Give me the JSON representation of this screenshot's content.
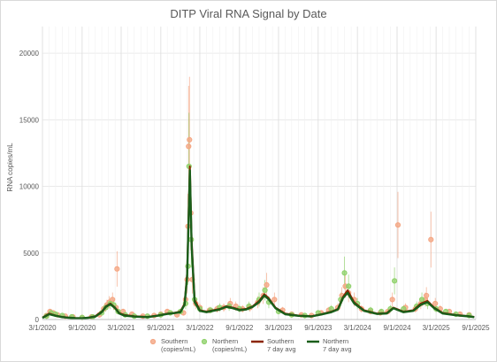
{
  "chart_data": {
    "type": "scatter",
    "title": "DITP Viral RNA Signal by Date",
    "xlabel": "",
    "ylabel": "RNA copies/mL",
    "ylim": [
      0,
      22000
    ],
    "xlim": [
      "2020-03-01",
      "2025-09-01"
    ],
    "yticks": [
      0,
      5000,
      10000,
      15000,
      20000
    ],
    "xticks": [
      "3/1/2020",
      "9/1/2020",
      "3/1/2021",
      "9/1/2021",
      "3/1/2022",
      "9/1/2022",
      "3/1/2023",
      "9/1/2023",
      "3/1/2024",
      "9/1/2024",
      "3/1/2025",
      "9/1/2025"
    ],
    "grid": true,
    "legend_position": "bottom",
    "colors": {
      "southern_points": "#f4a582",
      "northern_points": "#8fd16a",
      "southern_avg": "#8b2500",
      "northern_avg": "#1a5e1a"
    },
    "series": [
      {
        "name": "Southern (copies/mL)",
        "kind": "points",
        "x": [
          "2020-03-20",
          "2020-04-05",
          "2020-04-20",
          "2020-05-10",
          "2020-06-15",
          "2020-07-20",
          "2020-09-01",
          "2020-10-15",
          "2020-11-20",
          "2020-12-10",
          "2020-12-25",
          "2021-01-05",
          "2021-01-20",
          "2021-02-05",
          "2021-02-10",
          "2021-03-10",
          "2021-04-20",
          "2021-06-10",
          "2021-08-01",
          "2021-09-01",
          "2021-10-01",
          "2021-11-15",
          "2021-12-15",
          "2021-12-25",
          "2022-01-01",
          "2022-01-05",
          "2022-01-08",
          "2022-01-12",
          "2022-01-18",
          "2022-01-25",
          "2022-02-10",
          "2022-03-01",
          "2022-04-15",
          "2022-05-20",
          "2022-06-20",
          "2022-07-20",
          "2022-08-15",
          "2022-09-15",
          "2022-10-20",
          "2022-11-25",
          "2022-12-20",
          "2023-01-05",
          "2023-02-10",
          "2023-03-20",
          "2023-05-01",
          "2023-06-15",
          "2023-08-01",
          "2023-09-15",
          "2023-10-20",
          "2023-12-01",
          "2023-12-20",
          "2024-01-05",
          "2024-01-20",
          "2024-02-15",
          "2024-03-20",
          "2024-05-01",
          "2024-06-15",
          "2024-07-20",
          "2024-08-10",
          "2024-09-05",
          "2024-10-10",
          "2024-11-25",
          "2024-12-20",
          "2025-01-10",
          "2025-01-15",
          "2025-02-05",
          "2025-02-25",
          "2025-03-20",
          "2025-05-01",
          "2025-06-20",
          "2025-08-01"
        ],
        "y": [
          300,
          600,
          500,
          350,
          250,
          200,
          150,
          200,
          350,
          800,
          1100,
          1300,
          1500,
          900,
          3800,
          600,
          400,
          250,
          300,
          400,
          600,
          350,
          500,
          1500,
          3000,
          7000,
          13000,
          13500,
          8000,
          3000,
          1200,
          900,
          700,
          800,
          900,
          1200,
          1000,
          800,
          900,
          1300,
          1800,
          2600,
          1500,
          700,
          400,
          350,
          300,
          500,
          700,
          900,
          1800,
          2500,
          2000,
          1500,
          800,
          600,
          500,
          600,
          1500,
          7100,
          900,
          800,
          1200,
          1500,
          1800,
          6000,
          1200,
          800,
          600,
          400,
          350
        ]
      },
      {
        "name": "Northern (copies/mL)",
        "kind": "points",
        "x": [
          "2020-03-20",
          "2020-04-10",
          "2020-05-01",
          "2020-06-01",
          "2020-07-15",
          "2020-09-01",
          "2020-10-20",
          "2020-12-01",
          "2020-12-20",
          "2021-01-10",
          "2021-01-25",
          "2021-02-15",
          "2021-03-20",
          "2021-05-01",
          "2021-07-01",
          "2021-09-01",
          "2021-10-15",
          "2021-12-01",
          "2021-12-25",
          "2022-01-05",
          "2022-01-10",
          "2022-01-20",
          "2022-02-05",
          "2022-03-01",
          "2022-04-20",
          "2022-06-01",
          "2022-07-15",
          "2022-09-01",
          "2022-10-15",
          "2022-12-01",
          "2022-12-28",
          "2023-01-15",
          "2023-03-01",
          "2023-05-01",
          "2023-07-01",
          "2023-09-01",
          "2023-11-01",
          "2023-12-15",
          "2024-01-01",
          "2024-01-20",
          "2024-03-01",
          "2024-05-01",
          "2024-06-20",
          "2024-08-01",
          "2024-08-20",
          "2024-10-01",
          "2024-12-01",
          "2024-12-25",
          "2025-01-20",
          "2025-03-01",
          "2025-04-15",
          "2025-06-01",
          "2025-08-01"
        ],
        "y": [
          250,
          500,
          400,
          300,
          200,
          150,
          200,
          500,
          900,
          1200,
          1100,
          600,
          350,
          250,
          250,
          350,
          500,
          600,
          1200,
          4000,
          11500,
          6000,
          1500,
          800,
          700,
          900,
          1000,
          800,
          1000,
          1500,
          2200,
          1300,
          600,
          350,
          300,
          500,
          800,
          1500,
          3500,
          2500,
          1200,
          700,
          600,
          800,
          2900,
          800,
          1000,
          1500,
          1200,
          800,
          600,
          400,
          300
        ]
      },
      {
        "name": "Southern 7 day avg",
        "kind": "line",
        "x": [
          "2020-03-01",
          "2020-04-01",
          "2020-05-01",
          "2020-06-01",
          "2020-07-01",
          "2020-08-01",
          "2020-09-01",
          "2020-10-01",
          "2020-11-01",
          "2020-12-01",
          "2020-12-20",
          "2021-01-10",
          "2021-02-01",
          "2021-02-20",
          "2021-03-15",
          "2021-05-01",
          "2021-07-01",
          "2021-08-15",
          "2021-10-01",
          "2021-11-01",
          "2021-12-01",
          "2021-12-20",
          "2022-01-01",
          "2022-01-08",
          "2022-01-14",
          "2022-01-22",
          "2022-02-05",
          "2022-03-01",
          "2022-04-01",
          "2022-05-01",
          "2022-06-01",
          "2022-07-01",
          "2022-08-01",
          "2022-09-01",
          "2022-10-01",
          "2022-11-01",
          "2022-12-01",
          "2022-12-25",
          "2023-01-15",
          "2023-02-15",
          "2023-04-01",
          "2023-06-01",
          "2023-08-01",
          "2023-09-15",
          "2023-11-01",
          "2023-12-01",
          "2023-12-25",
          "2024-01-15",
          "2024-02-15",
          "2024-04-01",
          "2024-06-01",
          "2024-07-15",
          "2024-08-15",
          "2024-10-01",
          "2024-11-15",
          "2024-12-20",
          "2025-01-20",
          "2025-02-20",
          "2025-04-01",
          "2025-06-01",
          "2025-08-01",
          "2025-08-25"
        ],
        "y": [
          150,
          450,
          300,
          200,
          150,
          120,
          100,
          150,
          250,
          600,
          1000,
          1200,
          900,
          500,
          350,
          250,
          200,
          300,
          450,
          500,
          600,
          1200,
          3500,
          8000,
          11500,
          6000,
          1500,
          700,
          600,
          700,
          800,
          1000,
          900,
          750,
          800,
          1000,
          1400,
          1900,
          1600,
          900,
          450,
          300,
          250,
          400,
          600,
          800,
          1700,
          2200,
          1300,
          700,
          450,
          500,
          900,
          600,
          700,
          1200,
          1400,
          900,
          500,
          350,
          250,
          200
        ]
      },
      {
        "name": "Northern 7 day avg",
        "kind": "line",
        "x": [
          "2020-03-01",
          "2020-04-01",
          "2020-05-01",
          "2020-06-01",
          "2020-07-01",
          "2020-08-01",
          "2020-09-01",
          "2020-10-01",
          "2020-11-01",
          "2020-12-01",
          "2020-12-20",
          "2021-01-10",
          "2021-02-01",
          "2021-02-20",
          "2021-03-15",
          "2021-05-01",
          "2021-07-01",
          "2021-08-15",
          "2021-10-01",
          "2021-11-01",
          "2021-12-01",
          "2021-12-20",
          "2022-01-01",
          "2022-01-08",
          "2022-01-14",
          "2022-01-22",
          "2022-02-05",
          "2022-03-01",
          "2022-04-01",
          "2022-05-01",
          "2022-06-01",
          "2022-07-01",
          "2022-08-01",
          "2022-09-01",
          "2022-10-01",
          "2022-11-01",
          "2022-12-01",
          "2022-12-25",
          "2023-01-15",
          "2023-02-15",
          "2023-04-01",
          "2023-06-01",
          "2023-08-01",
          "2023-09-15",
          "2023-11-01",
          "2023-12-01",
          "2023-12-25",
          "2024-01-15",
          "2024-02-15",
          "2024-04-01",
          "2024-06-01",
          "2024-07-15",
          "2024-08-15",
          "2024-10-01",
          "2024-11-15",
          "2024-12-20",
          "2025-01-20",
          "2025-02-20",
          "2025-04-01",
          "2025-06-01",
          "2025-08-01",
          "2025-08-25"
        ],
        "y": [
          120,
          400,
          280,
          180,
          130,
          100,
          90,
          130,
          220,
          550,
          950,
          1150,
          850,
          450,
          300,
          220,
          180,
          280,
          420,
          480,
          550,
          1100,
          3200,
          7500,
          11200,
          5500,
          1300,
          650,
          550,
          650,
          750,
          950,
          850,
          700,
          750,
          950,
          1300,
          1800,
          1500,
          850,
          400,
          280,
          230,
          380,
          550,
          750,
          1600,
          2000,
          1200,
          650,
          420,
          450,
          850,
          550,
          650,
          1100,
          1300,
          850,
          450,
          320,
          230,
          180
        ]
      }
    ]
  }
}
